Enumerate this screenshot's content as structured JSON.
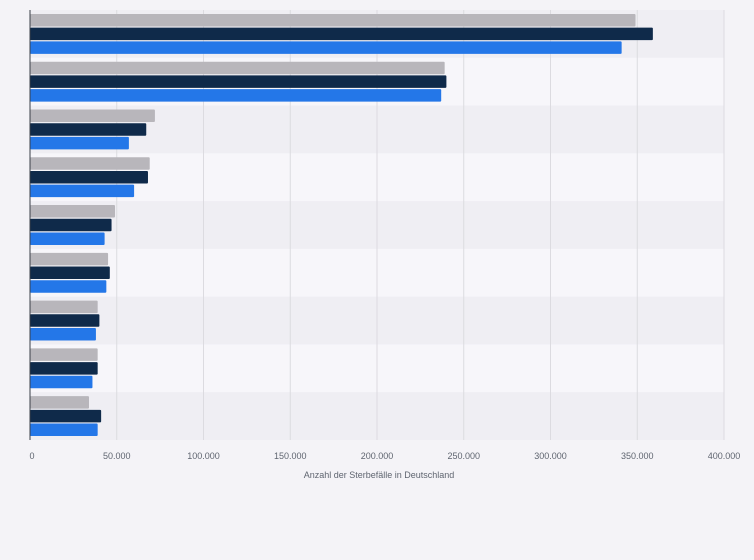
{
  "chart_data": {
    "type": "bar",
    "orientation": "horizontal",
    "title": "",
    "xlabel": "Anzahl der Sterbefälle in Deutschland",
    "ylabel": "",
    "xlim": [
      0,
      400000
    ],
    "x_ticks": [
      0,
      50000,
      100000,
      150000,
      200000,
      250000,
      300000,
      350000,
      400000
    ],
    "x_tick_labels": [
      "0",
      "50.000",
      "100.000",
      "150.000",
      "200.000",
      "250.000",
      "300.000",
      "350.000",
      "400.000"
    ],
    "grid": true,
    "categories": [
      "",
      "",
      "",
      "",
      "",
      "",
      "",
      "",
      ""
    ],
    "series": [
      {
        "name": "",
        "color": "#b8b6bb",
        "values": [
          349000,
          239000,
          72000,
          69000,
          49000,
          45000,
          39000,
          39000,
          34000
        ]
      },
      {
        "name": "",
        "color": "#0f2a4a",
        "values": [
          359000,
          240000,
          67000,
          68000,
          47000,
          46000,
          40000,
          39000,
          41000
        ]
      },
      {
        "name": "",
        "color": "#2477e8",
        "values": [
          341000,
          237000,
          57000,
          60000,
          43000,
          44000,
          38000,
          36000,
          39000
        ]
      }
    ]
  }
}
